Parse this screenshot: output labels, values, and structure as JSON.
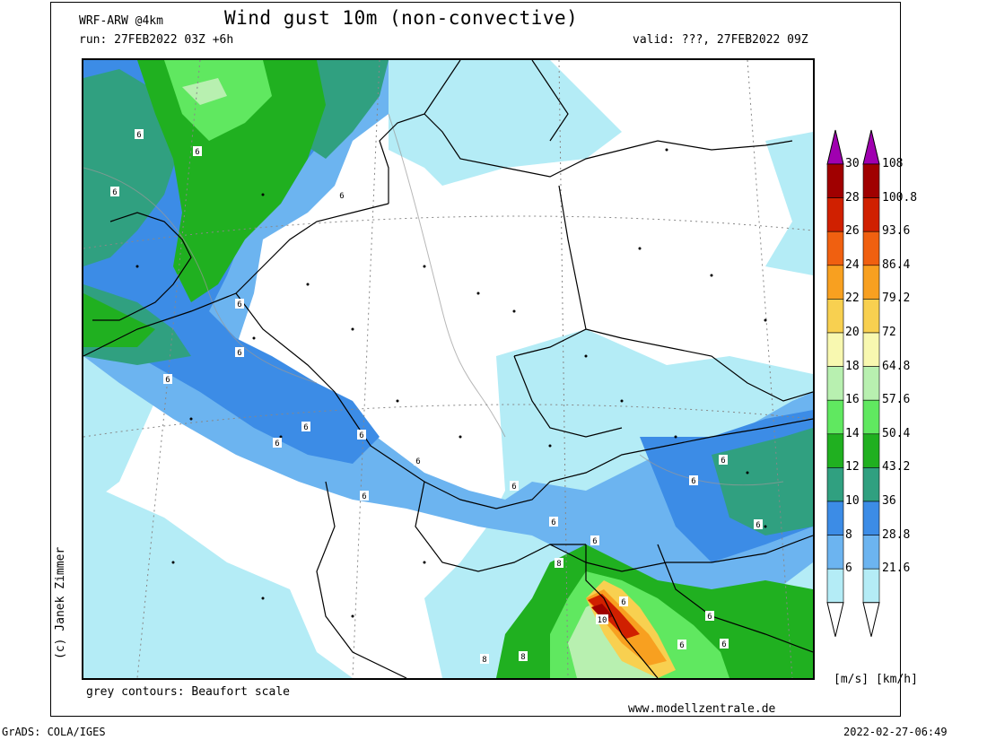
{
  "header": {
    "model": "WRF-ARW @4km",
    "title": "Wind gust 10m (non-convective)",
    "run": "run: 27FEB2022 03Z +6h",
    "valid": "valid: ???, 27FEB2022 09Z"
  },
  "footer": {
    "credit": "(c) Janek Zimmer",
    "contours_note": "grey contours: Beaufort scale",
    "website": "www.modellzentrale.de",
    "software": "GrADS: COLA/IGES",
    "timestamp": "2022-02-27-06:49"
  },
  "legend": {
    "units": "[m/s]  [km/h]",
    "ms_labels": [
      "30",
      "28",
      "26",
      "24",
      "22",
      "20",
      "18",
      "16",
      "14",
      "12",
      "10",
      "8",
      "6"
    ],
    "kmh_labels": [
      "108",
      "100.8",
      "93.6",
      "86.4",
      "79.2",
      "72",
      "64.8",
      "57.6",
      "50.4",
      "43.2",
      "36",
      "28.8",
      "21.6"
    ],
    "colors": [
      "#a00000",
      "#d02000",
      "#f06010",
      "#f8a020",
      "#f8d050",
      "#f8f8b0",
      "#b8f0b0",
      "#60e860",
      "#20b020",
      "#30a080",
      "#3c8ce6",
      "#6cb4f0",
      "#b4ecf6"
    ],
    "over_color": "#a000b0"
  },
  "map": {
    "beaufort_labels": [
      "6",
      "6",
      "6",
      "6",
      "6",
      "6",
      "6",
      "6",
      "6",
      "6",
      "6",
      "6",
      "6",
      "6",
      "6",
      "6",
      "6",
      "6",
      "6",
      "6",
      "6",
      "6",
      "8",
      "10",
      "8",
      "8",
      "6"
    ]
  }
}
